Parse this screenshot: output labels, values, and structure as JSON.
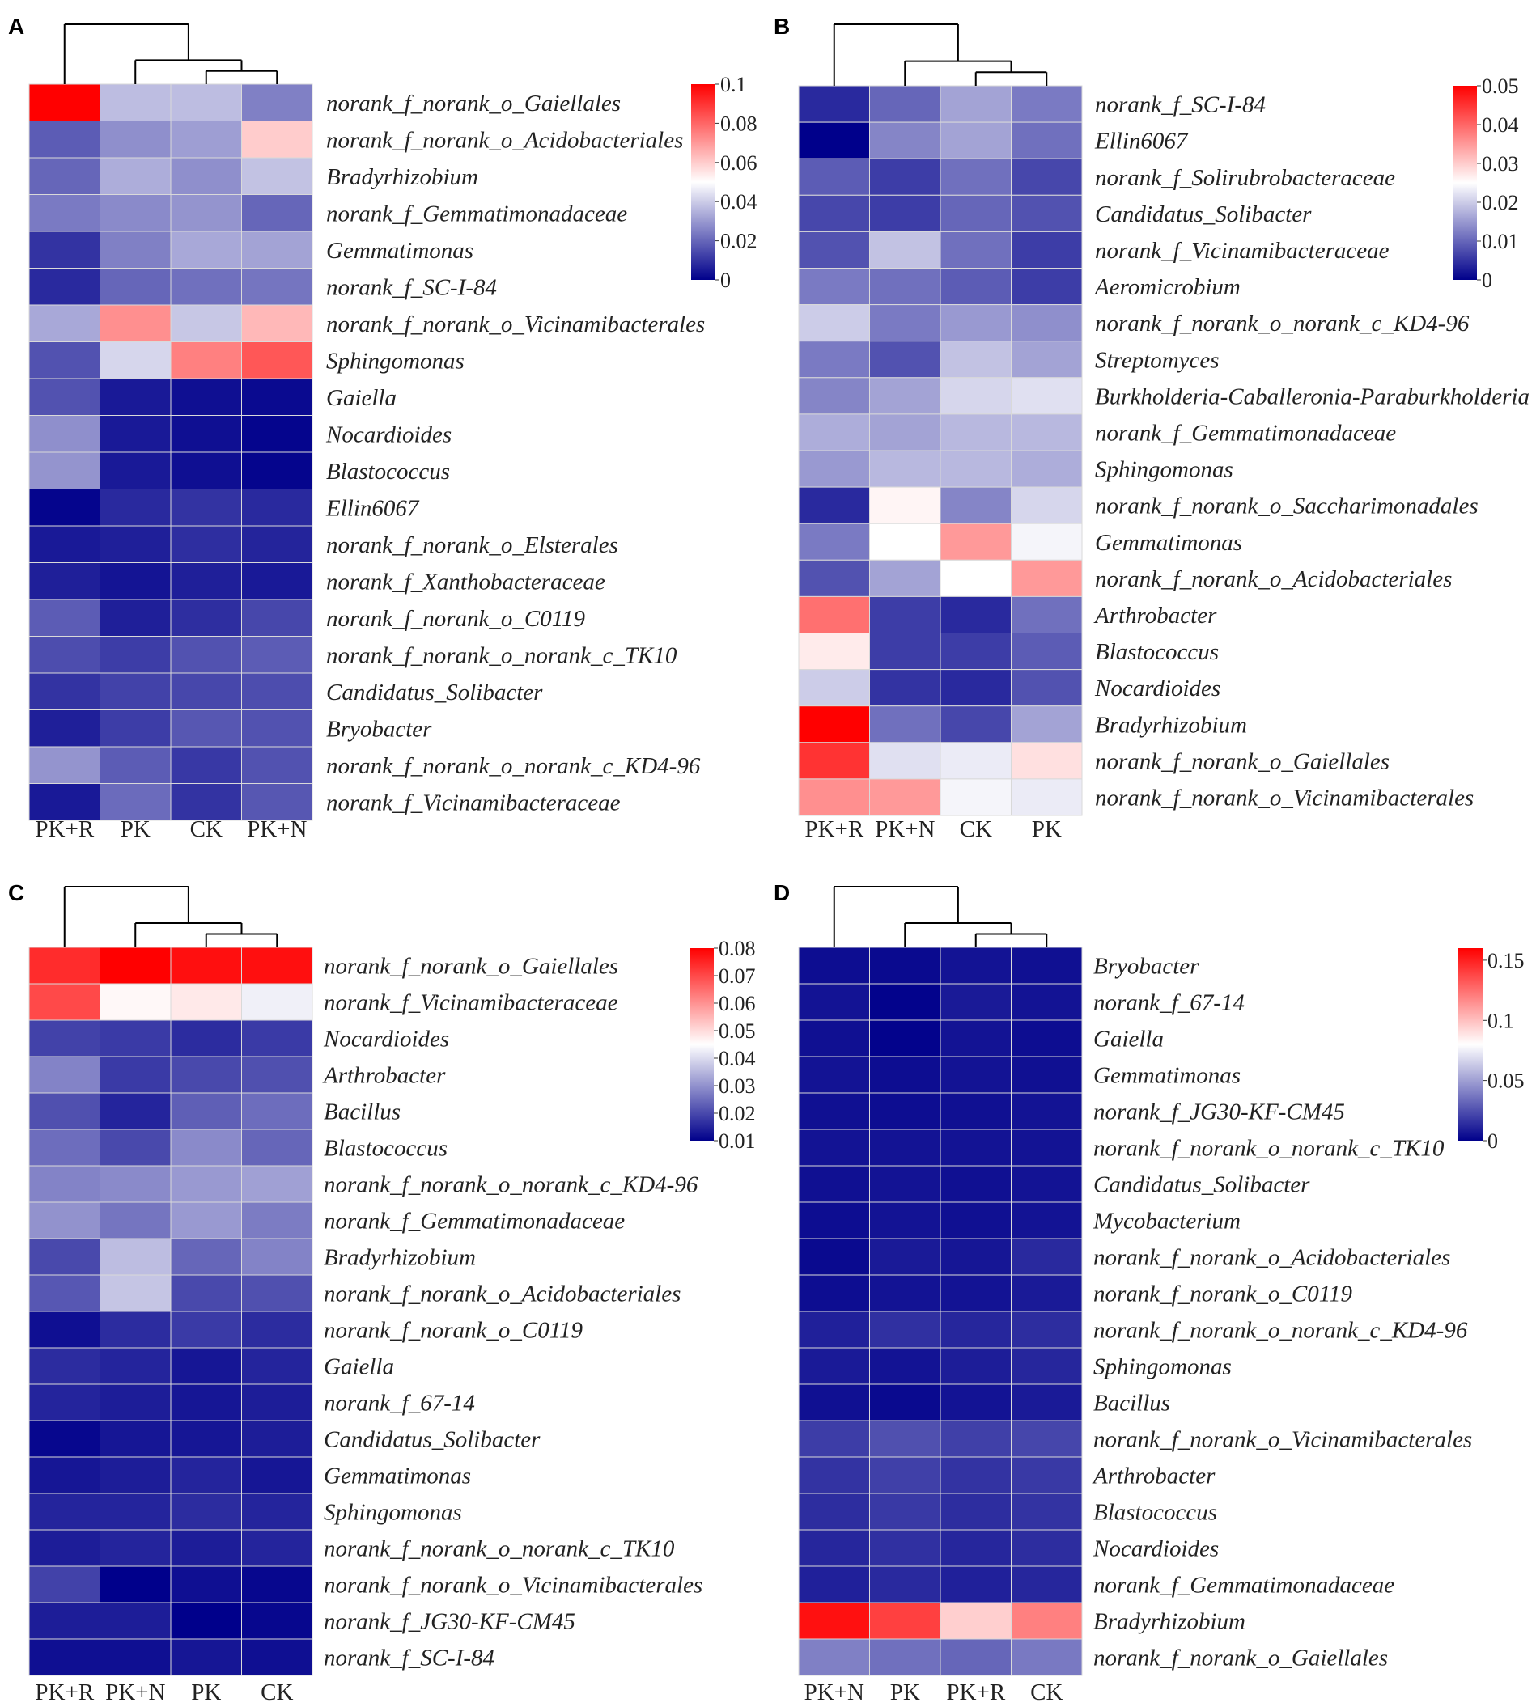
{
  "colors": {
    "low": "#00008b",
    "mid": "#ffffff",
    "high": "#ff0000",
    "grid": "#d9d9d9",
    "tree": "#000000"
  },
  "chart_data": [
    {
      "type": "heatmap",
      "panel": "A",
      "columns": [
        "PK+R",
        "PK",
        "CK",
        "PK+N"
      ],
      "rows": [
        "norank_f_norank_o_Gaiellales",
        "norank_f_norank_o_Acidobacteriales",
        "Bradyrhizobium",
        "norank_f_Gemmatimonadaceae",
        "Gemmatimonas",
        "norank_f_SC-I-84",
        "norank_f_norank_o_Vicinamibacterales",
        "Sphingomonas",
        "Gaiella",
        "Nocardioides",
        "Blastococcus",
        "Ellin6067",
        "norank_f_norank_o_Elsterales",
        "norank_f_Xanthobacteraceae",
        "norank_f_norank_o_C0119",
        "norank_f_norank_o_norank_c_TK10",
        "Candidatus_Solibacter",
        "Bryobacter",
        "norank_f_norank_o_norank_c_KD4-96",
        "norank_f_Vicinamibacteraceae"
      ],
      "values": [
        [
          0.1,
          0.037,
          0.037,
          0.025
        ],
        [
          0.018,
          0.028,
          0.031,
          0.06
        ],
        [
          0.02,
          0.034,
          0.028,
          0.038
        ],
        [
          0.024,
          0.027,
          0.029,
          0.02
        ],
        [
          0.01,
          0.025,
          0.033,
          0.032
        ],
        [
          0.008,
          0.02,
          0.022,
          0.023
        ],
        [
          0.033,
          0.072,
          0.039,
          0.064
        ],
        [
          0.016,
          0.042,
          0.075,
          0.083
        ],
        [
          0.016,
          0.005,
          0.003,
          0.002
        ],
        [
          0.028,
          0.005,
          0.003,
          0.001
        ],
        [
          0.029,
          0.005,
          0.003,
          0.001
        ],
        [
          0.001,
          0.008,
          0.01,
          0.008
        ],
        [
          0.005,
          0.006,
          0.009,
          0.007
        ],
        [
          0.006,
          0.004,
          0.006,
          0.005
        ],
        [
          0.018,
          0.006,
          0.009,
          0.014
        ],
        [
          0.015,
          0.012,
          0.016,
          0.018
        ],
        [
          0.01,
          0.013,
          0.014,
          0.015
        ],
        [
          0.006,
          0.012,
          0.017,
          0.016
        ],
        [
          0.029,
          0.018,
          0.011,
          0.016
        ],
        [
          0.005,
          0.021,
          0.01,
          0.017
        ]
      ],
      "colorbar": {
        "min": 0,
        "max": 0.1,
        "ticks": [
          "0.1",
          "0.08",
          "0.06",
          "0.04",
          "0.02",
          "0"
        ]
      },
      "dendrogram": {
        "order": [
          "PK+R",
          "PK",
          "CK",
          "PK+N"
        ],
        "merges": [
          [
            "CK",
            "PK+N"
          ],
          [
            "PK",
            "CK+PK+N"
          ],
          [
            "PK+R",
            "PK+CK+PK+N"
          ]
        ]
      }
    },
    {
      "type": "heatmap",
      "panel": "B",
      "columns": [
        "PK+R",
        "PK+N",
        "CK",
        "PK"
      ],
      "rows": [
        "norank_f_SC-I-84",
        "Ellin6067",
        "norank_f_Solirubrobacteraceae",
        "Candidatus_Solibacter",
        "norank_f_Vicinamibacteraceae",
        "Aeromicrobium",
        "norank_f_norank_o_norank_c_KD4-96",
        "Streptomyces",
        "Burkholderia-Caballeronia-Paraburkholderia",
        "norank_f_Gemmatimonadaceae",
        "Sphingomonas",
        "norank_f_norank_o_Saccharimonadales",
        "Gemmatimonas",
        "norank_f_norank_o_Acidobacteriales",
        "Arthrobacter",
        "Blastococcus",
        "Nocardioides",
        "Bradyrhizobium",
        "norank_f_norank_o_Gaiellales",
        "norank_f_norank_o_Vicinamibacterales"
      ],
      "values": [
        [
          0.004,
          0.01,
          0.016,
          0.012
        ],
        [
          0.0,
          0.013,
          0.016,
          0.011
        ],
        [
          0.009,
          0.006,
          0.011,
          0.007
        ],
        [
          0.007,
          0.006,
          0.01,
          0.008
        ],
        [
          0.008,
          0.019,
          0.011,
          0.006
        ],
        [
          0.012,
          0.011,
          0.009,
          0.006
        ],
        [
          0.02,
          0.012,
          0.015,
          0.014
        ],
        [
          0.012,
          0.008,
          0.019,
          0.016
        ],
        [
          0.013,
          0.016,
          0.021,
          0.022
        ],
        [
          0.017,
          0.016,
          0.018,
          0.018
        ],
        [
          0.015,
          0.018,
          0.018,
          0.017
        ],
        [
          0.004,
          0.026,
          0.013,
          0.021
        ],
        [
          0.012,
          0.025,
          0.035,
          0.024
        ],
        [
          0.008,
          0.016,
          0.025,
          0.035
        ],
        [
          0.039,
          0.006,
          0.004,
          0.011
        ],
        [
          0.027,
          0.006,
          0.006,
          0.009
        ],
        [
          0.02,
          0.005,
          0.004,
          0.008
        ],
        [
          0.05,
          0.011,
          0.007,
          0.016
        ],
        [
          0.045,
          0.022,
          0.023,
          0.028
        ],
        [
          0.036,
          0.035,
          0.024,
          0.023
        ]
      ],
      "colorbar": {
        "min": 0,
        "max": 0.05,
        "ticks": [
          "0.05",
          "0.04",
          "0.03",
          "0.02",
          "0.01",
          "0"
        ]
      },
      "dendrogram": {
        "order": [
          "PK+R",
          "PK+N",
          "CK",
          "PK"
        ],
        "merges": [
          [
            "CK",
            "PK"
          ],
          [
            "PK+N",
            "CK+PK"
          ],
          [
            "PK+R",
            "PK+N+CK+PK"
          ]
        ]
      }
    },
    {
      "type": "heatmap",
      "panel": "C",
      "columns": [
        "PK+R",
        "PK+N",
        "PK",
        "CK"
      ],
      "rows": [
        "norank_f_norank_o_Gaiellales",
        "norank_f_Vicinamibacteraceae",
        "Nocardioides",
        "Arthrobacter",
        "Bacillus",
        "Blastococcus",
        "norank_f_norank_o_norank_c_KD4-96",
        "norank_f_Gemmatimonadaceae",
        "Bradyrhizobium",
        "norank_f_norank_o_Acidobacteriales",
        "norank_f_norank_o_C0119",
        "Gaiella",
        "norank_f_67-14",
        "Candidatus_Solibacter",
        "Gemmatimonas",
        "Sphingomonas",
        "norank_f_norank_o_norank_c_TK10",
        "norank_f_norank_o_Vicinamibacterales",
        "norank_f_JG30-KF-CM45",
        "norank_f_SC-I-84"
      ],
      "values": [
        [
          0.074,
          0.08,
          0.078,
          0.078
        ],
        [
          0.07,
          0.046,
          0.048,
          0.043
        ],
        [
          0.019,
          0.018,
          0.016,
          0.018
        ],
        [
          0.028,
          0.018,
          0.02,
          0.021
        ],
        [
          0.021,
          0.015,
          0.023,
          0.025
        ],
        [
          0.025,
          0.02,
          0.029,
          0.024
        ],
        [
          0.028,
          0.029,
          0.031,
          0.032
        ],
        [
          0.03,
          0.026,
          0.031,
          0.027
        ],
        [
          0.02,
          0.036,
          0.024,
          0.028
        ],
        [
          0.022,
          0.037,
          0.02,
          0.021
        ],
        [
          0.012,
          0.016,
          0.018,
          0.016
        ],
        [
          0.016,
          0.015,
          0.013,
          0.015
        ],
        [
          0.015,
          0.014,
          0.013,
          0.014
        ],
        [
          0.011,
          0.013,
          0.013,
          0.014
        ],
        [
          0.013,
          0.014,
          0.015,
          0.013
        ],
        [
          0.015,
          0.015,
          0.016,
          0.015
        ],
        [
          0.014,
          0.015,
          0.014,
          0.015
        ],
        [
          0.019,
          0.009,
          0.012,
          0.011
        ],
        [
          0.014,
          0.014,
          0.01,
          0.011
        ],
        [
          0.012,
          0.012,
          0.013,
          0.012
        ]
      ],
      "colorbar": {
        "min": 0.01,
        "max": 0.08,
        "ticks": [
          "0.08",
          "0.07",
          "0.06",
          "0.05",
          "0.04",
          "0.03",
          "0.02",
          "0.01"
        ]
      },
      "dendrogram": {
        "order": [
          "PK+R",
          "PK+N",
          "PK",
          "CK"
        ],
        "merges": [
          [
            "PK",
            "CK"
          ],
          [
            "PK+N",
            "PK+CK"
          ],
          [
            "PK+R",
            "PK+N+PK+CK"
          ]
        ]
      }
    },
    {
      "type": "heatmap",
      "panel": "D",
      "columns": [
        "PK+N",
        "PK",
        "PK+R",
        "CK"
      ],
      "rows": [
        "Bryobacter",
        "norank_f_67-14",
        "Gaiella",
        "Gemmatimonas",
        "norank_f_JG30-KF-CM45",
        "norank_f_norank_o_norank_c_TK10",
        "Candidatus_Solibacter",
        "Mycobacterium",
        "norank_f_norank_o_Acidobacteriales",
        "norank_f_norank_o_C0119",
        "norank_f_norank_o_norank_c_KD4-96",
        "Sphingomonas",
        "Bacillus",
        "norank_f_norank_o_Vicinamibacterales",
        "Arthrobacter",
        "Blastococcus",
        "Nocardioides",
        "norank_f_Gemmatimonadaceae",
        "Bradyrhizobium",
        "norank_f_norank_o_Gaiellales"
      ],
      "values": [
        [
          0.004,
          0.003,
          0.006,
          0.005
        ],
        [
          0.006,
          0.001,
          0.008,
          0.006
        ],
        [
          0.005,
          0.001,
          0.006,
          0.004
        ],
        [
          0.006,
          0.004,
          0.006,
          0.005
        ],
        [
          0.005,
          0.004,
          0.005,
          0.006
        ],
        [
          0.006,
          0.006,
          0.006,
          0.006
        ],
        [
          0.005,
          0.006,
          0.005,
          0.006
        ],
        [
          0.004,
          0.006,
          0.005,
          0.006
        ],
        [
          0.003,
          0.008,
          0.007,
          0.013
        ],
        [
          0.004,
          0.006,
          0.006,
          0.008
        ],
        [
          0.01,
          0.015,
          0.012,
          0.014
        ],
        [
          0.008,
          0.006,
          0.009,
          0.012
        ],
        [
          0.005,
          0.003,
          0.006,
          0.008
        ],
        [
          0.019,
          0.025,
          0.02,
          0.022
        ],
        [
          0.016,
          0.02,
          0.016,
          0.018
        ],
        [
          0.014,
          0.018,
          0.014,
          0.016
        ],
        [
          0.012,
          0.015,
          0.012,
          0.014
        ],
        [
          0.01,
          0.013,
          0.01,
          0.012
        ],
        [
          0.155,
          0.14,
          0.095,
          0.12
        ],
        [
          0.04,
          0.035,
          0.032,
          0.038
        ]
      ],
      "colorbar": {
        "min": 0,
        "max": 0.16,
        "ticks": [
          "0.15",
          "0.1",
          "0.05",
          "0"
        ]
      },
      "dendrogram": {
        "order": [
          "PK+N",
          "PK",
          "PK+R",
          "CK"
        ],
        "merges": [
          [
            "PK+R",
            "CK"
          ],
          [
            "PK",
            "PK+R+CK"
          ],
          [
            "PK+N",
            "PK+PK+R+CK"
          ]
        ]
      }
    }
  ]
}
